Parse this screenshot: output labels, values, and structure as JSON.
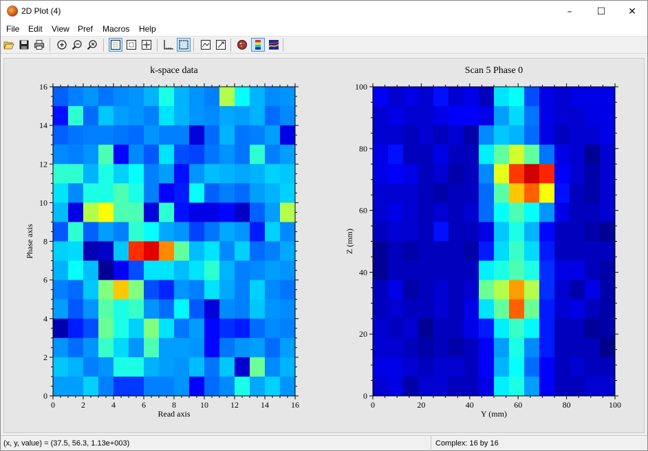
{
  "window": {
    "title": "2D Plot (4)",
    "minimize": "–",
    "maximize": "☐",
    "close": "✕"
  },
  "menu": [
    "File",
    "Edit",
    "View",
    "Pref",
    "Macros",
    "Help"
  ],
  "toolbar": {
    "buttons": [
      "open-icon",
      "save-icon",
      "print-icon",
      "zoom-in-icon",
      "zoom-out-icon",
      "zoom-reset-icon",
      "grid-icon",
      "box-icon",
      "crosshair-icon",
      "axes-icon",
      "dotted-box-icon",
      "surface-icon",
      "flip-icon",
      "palette-icon",
      "colorbar-icon",
      "contour-icon"
    ],
    "active": [
      "grid-icon",
      "dotted-box-icon",
      "colorbar-icon"
    ]
  },
  "status": {
    "left": "(x, y, value) = (37.5, 56.3, 1.13e+003)",
    "right": "Complex: 16 by 16"
  },
  "chart_data": [
    {
      "type": "heatmap",
      "title": "k-space data",
      "xlabel": "Read axis",
      "ylabel": "Phase axis",
      "xlim": [
        0,
        16
      ],
      "ylim": [
        0,
        16
      ],
      "xticks": [
        0,
        2,
        4,
        6,
        8,
        10,
        12,
        14,
        16
      ],
      "yticks": [
        0,
        2,
        4,
        6,
        8,
        10,
        12,
        14,
        16
      ],
      "colormap": "jet",
      "values": [
        [
          0.22,
          0.25,
          0.27,
          0.24,
          0.26,
          0.27,
          0.3,
          0.4,
          0.3,
          0.27,
          0.25,
          0.55,
          0.38,
          0.3,
          0.26,
          0.27
        ],
        [
          0.14,
          0.42,
          0.23,
          0.32,
          0.28,
          0.27,
          0.25,
          0.35,
          0.3,
          0.27,
          0.26,
          0.29,
          0.28,
          0.3,
          0.23,
          0.26
        ],
        [
          0.22,
          0.24,
          0.25,
          0.25,
          0.24,
          0.23,
          0.27,
          0.25,
          0.25,
          0.09,
          0.23,
          0.3,
          0.24,
          0.25,
          0.28,
          0.1
        ],
        [
          0.26,
          0.25,
          0.27,
          0.45,
          0.13,
          0.26,
          0.21,
          0.35,
          0.2,
          0.19,
          0.24,
          0.27,
          0.24,
          0.42,
          0.25,
          0.28
        ],
        [
          0.42,
          0.42,
          0.3,
          0.4,
          0.33,
          0.38,
          0.25,
          0.28,
          0.14,
          0.27,
          0.31,
          0.3,
          0.29,
          0.3,
          0.33,
          0.32
        ],
        [
          0.35,
          0.26,
          0.4,
          0.4,
          0.45,
          0.4,
          0.25,
          0.12,
          0.15,
          0.38,
          0.22,
          0.25,
          0.23,
          0.28,
          0.3,
          0.33
        ],
        [
          0.31,
          0.1,
          0.55,
          0.62,
          0.45,
          0.45,
          0.09,
          0.42,
          0.14,
          0.1,
          0.1,
          0.13,
          0.07,
          0.22,
          0.28,
          0.55
        ],
        [
          0.21,
          0.42,
          0.22,
          0.28,
          0.25,
          0.42,
          0.38,
          0.29,
          0.27,
          0.19,
          0.24,
          0.29,
          0.27,
          0.15,
          0.33,
          0.26
        ],
        [
          0.33,
          0.34,
          0.05,
          0.07,
          0.32,
          0.83,
          0.9,
          0.74,
          0.47,
          0.31,
          0.35,
          0.26,
          0.33,
          0.23,
          0.25,
          0.29
        ],
        [
          0.3,
          0.38,
          0.31,
          0.02,
          0.12,
          0.2,
          0.35,
          0.35,
          0.31,
          0.35,
          0.42,
          0.3,
          0.25,
          0.26,
          0.28,
          0.27
        ],
        [
          0.25,
          0.23,
          0.32,
          0.5,
          0.68,
          0.5,
          0.2,
          0.16,
          0.27,
          0.25,
          0.35,
          0.29,
          0.25,
          0.33,
          0.26,
          0.24
        ],
        [
          0.28,
          0.21,
          0.27,
          0.46,
          0.4,
          0.43,
          0.27,
          0.23,
          0.37,
          0.21,
          0.09,
          0.26,
          0.25,
          0.32,
          0.27,
          0.26
        ],
        [
          0.05,
          0.15,
          0.2,
          0.48,
          0.4,
          0.33,
          0.5,
          0.35,
          0.24,
          0.28,
          0.13,
          0.17,
          0.15,
          0.23,
          0.26,
          0.25
        ],
        [
          0.27,
          0.23,
          0.27,
          0.43,
          0.34,
          0.27,
          0.45,
          0.28,
          0.28,
          0.27,
          0.13,
          0.24,
          0.27,
          0.28,
          0.23,
          0.28
        ],
        [
          0.32,
          0.3,
          0.25,
          0.27,
          0.4,
          0.4,
          0.3,
          0.28,
          0.27,
          0.31,
          0.24,
          0.32,
          0.08,
          0.48,
          0.26,
          0.3
        ],
        [
          0.28,
          0.28,
          0.33,
          0.25,
          0.18,
          0.18,
          0.25,
          0.25,
          0.27,
          0.12,
          0.23,
          0.26,
          0.4,
          0.29,
          0.33,
          0.27
        ]
      ]
    },
    {
      "type": "heatmap",
      "title": "Scan 5 Phase 0",
      "xlabel": "Y (mm)",
      "ylabel": "Z (mm)",
      "xlim": [
        0,
        100
      ],
      "ylim": [
        0,
        100
      ],
      "xticks": [
        0,
        20,
        40,
        60,
        80,
        100
      ],
      "yticks": [
        0,
        20,
        40,
        60,
        80,
        100
      ],
      "colormap": "jet",
      "values": [
        [
          0.12,
          0.08,
          0.1,
          0.08,
          0.14,
          0.08,
          0.1,
          0.06,
          0.35,
          0.38,
          0.2,
          0.1,
          0.08,
          0.1,
          0.1,
          0.1
        ],
        [
          0.08,
          0.1,
          0.08,
          0.08,
          0.1,
          0.12,
          0.12,
          0.1,
          0.28,
          0.34,
          0.24,
          0.1,
          0.08,
          0.08,
          0.1,
          0.1
        ],
        [
          0.08,
          0.08,
          0.06,
          0.08,
          0.06,
          0.08,
          0.04,
          0.26,
          0.32,
          0.3,
          0.23,
          0.1,
          0.06,
          0.08,
          0.08,
          0.1
        ],
        [
          0.1,
          0.14,
          0.06,
          0.06,
          0.1,
          0.06,
          0.06,
          0.36,
          0.47,
          0.58,
          0.47,
          0.24,
          0.1,
          0.08,
          0.02,
          0.08
        ],
        [
          0.1,
          0.12,
          0.1,
          0.06,
          0.08,
          0.04,
          0.06,
          0.26,
          0.6,
          0.82,
          0.92,
          0.84,
          0.12,
          0.08,
          0.04,
          0.08
        ],
        [
          0.08,
          0.08,
          0.08,
          0.06,
          0.04,
          0.06,
          0.06,
          0.23,
          0.46,
          0.68,
          0.78,
          0.62,
          0.14,
          0.06,
          0.04,
          0.08
        ],
        [
          0.08,
          0.1,
          0.08,
          0.06,
          0.08,
          0.06,
          0.08,
          0.23,
          0.38,
          0.45,
          0.38,
          0.27,
          0.1,
          0.06,
          0.06,
          0.08
        ],
        [
          0.06,
          0.08,
          0.08,
          0.06,
          0.14,
          0.06,
          0.06,
          0.1,
          0.32,
          0.4,
          0.3,
          0.13,
          0.06,
          0.06,
          0.04,
          0.02
        ],
        [
          0.02,
          0.06,
          0.04,
          0.06,
          0.06,
          0.06,
          0.04,
          0.15,
          0.34,
          0.43,
          0.34,
          0.15,
          0.06,
          0.06,
          0.06,
          0.06
        ],
        [
          0.02,
          0.06,
          0.06,
          0.06,
          0.06,
          0.06,
          0.06,
          0.36,
          0.4,
          0.45,
          0.4,
          0.17,
          0.1,
          0.1,
          0.06,
          0.04
        ],
        [
          0.06,
          0.1,
          0.04,
          0.06,
          0.08,
          0.06,
          0.08,
          0.48,
          0.55,
          0.72,
          0.55,
          0.17,
          0.08,
          0.04,
          0.1,
          0.04
        ],
        [
          0.06,
          0.08,
          0.06,
          0.06,
          0.08,
          0.06,
          0.1,
          0.35,
          0.47,
          0.78,
          0.48,
          0.15,
          0.08,
          0.1,
          0.06,
          0.04
        ],
        [
          0.08,
          0.06,
          0.08,
          0.02,
          0.06,
          0.06,
          0.1,
          0.15,
          0.36,
          0.43,
          0.37,
          0.15,
          0.06,
          0.06,
          0.02,
          0.04
        ],
        [
          0.08,
          0.08,
          0.06,
          0.04,
          0.06,
          0.04,
          0.06,
          0.12,
          0.28,
          0.4,
          0.26,
          0.15,
          0.06,
          0.06,
          0.06,
          0.01
        ],
        [
          0.1,
          0.1,
          0.08,
          0.06,
          0.08,
          0.08,
          0.06,
          0.12,
          0.3,
          0.38,
          0.23,
          0.12,
          0.06,
          0.08,
          0.06,
          0.06
        ],
        [
          0.08,
          0.1,
          0.04,
          0.08,
          0.08,
          0.06,
          0.06,
          0.1,
          0.36,
          0.4,
          0.28,
          0.12,
          0.06,
          0.06,
          0.08,
          0.08
        ]
      ]
    }
  ]
}
